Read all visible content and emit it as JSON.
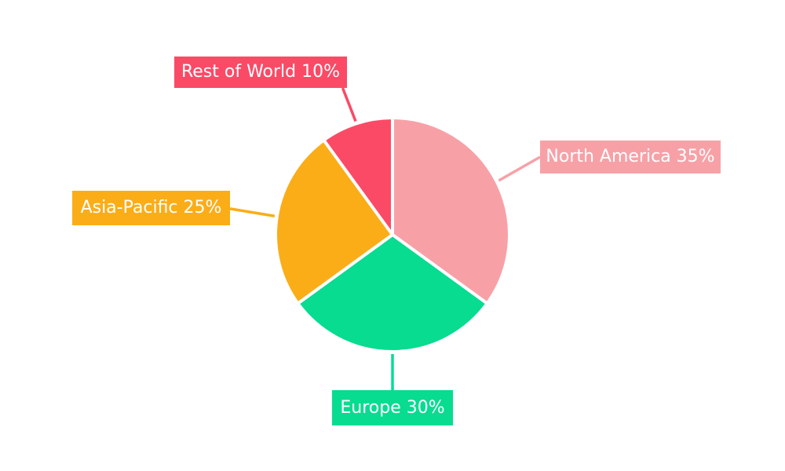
{
  "page": {
    "background": "#FFFFFF"
  },
  "chart_data": {
    "type": "pie",
    "labels": [
      "North America",
      "Europe",
      "Asia-Pacific",
      "Rest of World"
    ],
    "values": [
      35,
      30,
      25,
      10
    ],
    "unit": "%",
    "colors": [
      "#F7A1A7",
      "#07DC91",
      "#FBAD18",
      "#FB4A66"
    ],
    "display_labels": [
      "North America 35%",
      "Europe 30%",
      "Asia-Pacific 25%",
      "Rest of World 10%"
    ],
    "start_angle": "12 o'clock",
    "direction": "clockwise",
    "slice_gap_color": "#FFFFFF",
    "label_text_color": "#FFFFFF",
    "legend_position": "callout-labels",
    "grid": "off"
  }
}
